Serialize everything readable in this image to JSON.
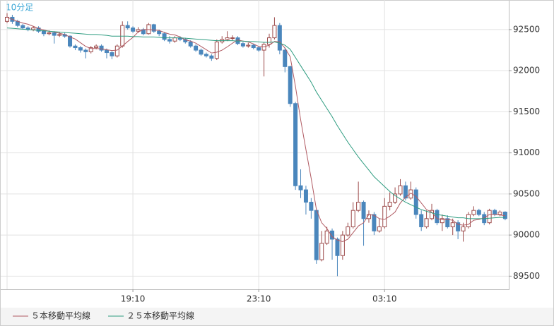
{
  "chart_data": {
    "type": "candlestick",
    "title": "10分足",
    "categories": [
      null,
      null,
      null,
      null,
      null,
      null,
      null,
      null,
      null,
      null,
      null,
      null,
      null,
      null,
      null,
      null,
      null,
      null,
      null,
      null,
      null,
      null,
      null,
      null,
      "19:10",
      null,
      null,
      null,
      null,
      null,
      null,
      null,
      null,
      null,
      null,
      null,
      null,
      null,
      null,
      null,
      null,
      null,
      null,
      null,
      null,
      null,
      null,
      null,
      "23:10",
      null,
      null,
      null,
      null,
      null,
      null,
      null,
      null,
      null,
      null,
      null,
      null,
      null,
      null,
      null,
      null,
      null,
      null,
      null,
      null,
      null,
      null,
      null,
      "03:10",
      null,
      null,
      null,
      null,
      null,
      null,
      null,
      null,
      null,
      null,
      null,
      null,
      null,
      null,
      null,
      null,
      null,
      null,
      null,
      null,
      null,
      null,
      null
    ],
    "open": [
      92600,
      92650,
      92600,
      92550,
      92520,
      92500,
      92520,
      92480,
      92450,
      92460,
      92430,
      92440,
      92420,
      92300,
      92280,
      92250,
      92230,
      92280,
      92300,
      92250,
      92220,
      92180,
      92300,
      92550,
      92520,
      92480,
      92500,
      92450,
      92560,
      92480,
      92450,
      92380,
      92360,
      92400,
      92380,
      92350,
      92300,
      92250,
      92200,
      92180,
      92150,
      92350,
      92380,
      92400,
      92400,
      92330,
      92300,
      92310,
      92280,
      92250,
      92320,
      92400,
      92550,
      92250,
      92050,
      91600,
      90600,
      90550,
      90400,
      90300,
      89700,
      89900,
      90050,
      89950,
      89750,
      90000,
      90100,
      90300,
      90400,
      90200,
      90250,
      90050,
      90100,
      90350,
      90400,
      90500,
      90600,
      90450,
      90550,
      90250,
      90100,
      90200,
      90300,
      90150,
      90200,
      90100,
      90150,
      90050,
      90100,
      90250,
      90300,
      90250,
      90150,
      90300,
      90250,
      90280
    ],
    "high": [
      92700,
      92680,
      92620,
      92570,
      92540,
      92540,
      92540,
      92500,
      92490,
      92480,
      92470,
      92460,
      92430,
      92320,
      92300,
      92270,
      92300,
      92320,
      92320,
      92270,
      92240,
      92320,
      92600,
      92600,
      92540,
      92530,
      92520,
      92580,
      92570,
      92500,
      92470,
      92420,
      92420,
      92420,
      92400,
      92370,
      92320,
      92270,
      92220,
      92200,
      92380,
      92420,
      92480,
      92430,
      92420,
      92350,
      92340,
      92330,
      92300,
      92350,
      92450,
      92650,
      92580,
      92280,
      92060,
      91620,
      90800,
      90600,
      90450,
      90310,
      90050,
      90100,
      90080,
      89970,
      90050,
      90150,
      90400,
      90650,
      90420,
      90300,
      90280,
      90200,
      90450,
      90520,
      90580,
      90680,
      90650,
      90650,
      90580,
      90300,
      90300,
      90380,
      90320,
      90250,
      90240,
      90200,
      90180,
      90150,
      90280,
      90350,
      90320,
      90280,
      90320,
      90320,
      90300,
      90290
    ],
    "low": [
      92580,
      92570,
      92530,
      92500,
      92480,
      92480,
      92460,
      92420,
      92430,
      92330,
      92410,
      92400,
      92280,
      92250,
      92220,
      92150,
      92210,
      92260,
      92230,
      92150,
      92140,
      92160,
      92280,
      92500,
      92460,
      92460,
      92430,
      92440,
      92460,
      92420,
      92360,
      92330,
      92340,
      92360,
      92330,
      92280,
      92230,
      92180,
      92160,
      92120,
      92130,
      92330,
      92360,
      92370,
      92310,
      92280,
      92280,
      92260,
      92230,
      91930,
      92280,
      92380,
      92200,
      91980,
      91560,
      90550,
      90450,
      90250,
      90200,
      89650,
      89680,
      89880,
      89700,
      89500,
      89700,
      89980,
      90080,
      90280,
      89870,
      90150,
      90000,
      90030,
      90080,
      90300,
      90380,
      90480,
      90420,
      90430,
      90200,
      90050,
      90080,
      90180,
      90120,
      90050,
      90080,
      90000,
      89950,
      89920,
      90080,
      90230,
      90230,
      90120,
      90130,
      90230,
      90230,
      90180
    ],
    "close": [
      92650,
      92600,
      92550,
      92520,
      92500,
      92520,
      92480,
      92450,
      92460,
      92430,
      92440,
      92420,
      92300,
      92280,
      92250,
      92230,
      92280,
      92300,
      92250,
      92220,
      92180,
      92300,
      92550,
      92520,
      92480,
      92500,
      92450,
      92560,
      92480,
      92450,
      92380,
      92360,
      92400,
      92380,
      92350,
      92300,
      92250,
      92200,
      92180,
      92150,
      92350,
      92380,
      92400,
      92400,
      92330,
      92300,
      92310,
      92280,
      92250,
      92320,
      92400,
      92550,
      92250,
      92050,
      91600,
      90600,
      90550,
      90400,
      90300,
      89700,
      89900,
      90050,
      89950,
      89750,
      90000,
      90100,
      90300,
      90400,
      90200,
      90250,
      90050,
      90100,
      90350,
      90400,
      90500,
      90600,
      90450,
      90550,
      90250,
      90100,
      90200,
      90300,
      90150,
      90200,
      90100,
      90150,
      90050,
      90100,
      90250,
      90300,
      90250,
      90150,
      90300,
      90250,
      90280,
      90200
    ],
    "up_color": "#9c4a4a",
    "down_color": "#4a86bc",
    "series": [
      {
        "name": "５本移動平均線",
        "color": "#b05a62",
        "values": [
          92650,
          92625,
          92600,
          92580,
          92565,
          92540,
          92515,
          92495,
          92480,
          92470,
          92455,
          92440,
          92410,
          92385,
          92340,
          92295,
          92270,
          92270,
          92265,
          92255,
          92245,
          92250,
          92300,
          92355,
          92405,
          92470,
          92500,
          92500,
          92495,
          92490,
          92465,
          92445,
          92435,
          92410,
          92375,
          92360,
          92335,
          92295,
          92255,
          92215,
          92225,
          92250,
          92290,
          92335,
          92375,
          92360,
          92350,
          92325,
          92295,
          92290,
          92310,
          92355,
          92350,
          92275,
          92170,
          91810,
          91400,
          91040,
          90690,
          90310,
          90150,
          90080,
          89980,
          89940,
          89920,
          89950,
          90030,
          90110,
          90150,
          90250,
          90240,
          90200,
          90190,
          90230,
          90280,
          90390,
          90460,
          90510,
          90470,
          90390,
          90310,
          90280,
          90200,
          90190,
          90190,
          90180,
          90130,
          90120,
          90130,
          90180,
          90190,
          90210,
          90250,
          90250,
          90245,
          90235
        ]
      },
      {
        "name": "２５本移動平均線",
        "color": "#2e9c80",
        "values": [
          92520,
          92515,
          92510,
          92505,
          92500,
          92495,
          92490,
          92485,
          92480,
          92475,
          92470,
          92465,
          92460,
          92455,
          92450,
          92445,
          92440,
          92440,
          92435,
          92430,
          92420,
          92420,
          92420,
          92420,
          92415,
          92415,
          92410,
          92410,
          92410,
          92405,
          92400,
          92400,
          92400,
          92400,
          92395,
          92390,
          92385,
          92380,
          92375,
          92370,
          92365,
          92365,
          92365,
          92365,
          92360,
          92360,
          92355,
          92355,
          92350,
          92345,
          92345,
          92350,
          92335,
          92310,
          92260,
          92160,
          92060,
          91960,
          91860,
          91740,
          91640,
          91540,
          91440,
          91330,
          91230,
          91130,
          91040,
          90950,
          90870,
          90790,
          90710,
          90650,
          90590,
          90530,
          90480,
          90440,
          90400,
          90370,
          90340,
          90310,
          90290,
          90270,
          90250,
          90240,
          90230,
          90220,
          90210,
          90210,
          90200,
          90200,
          90200,
          90200,
          90205,
          90210,
          90215,
          90215
        ]
      }
    ],
    "ylim": [
      89340,
      92860
    ],
    "yticks": [
      89500,
      90000,
      90500,
      91000,
      91500,
      92000,
      92500
    ],
    "grid": true
  }
}
